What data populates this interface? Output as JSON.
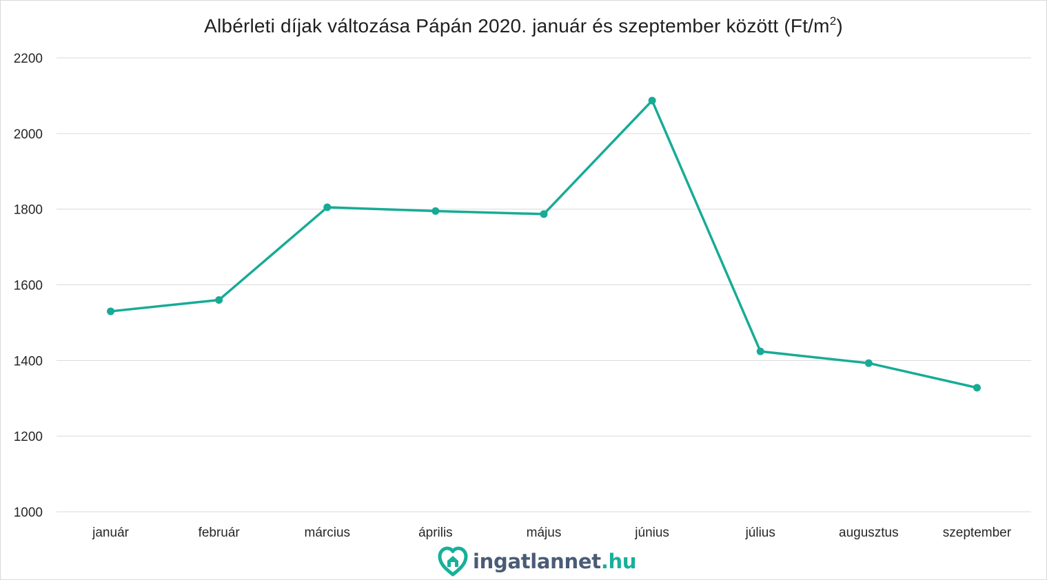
{
  "title": {
    "text": "Albérleti díjak változása Pápán 2020. január és szeptember között (Ft/m",
    "superscript": "2",
    "closing": ")"
  },
  "logo": {
    "main": "ingatlannet",
    "tld": ".hu",
    "icon": "heart-house-icon",
    "colors": {
      "main": "#4a5c75",
      "accent": "#17b09a"
    }
  },
  "chart_data": {
    "type": "line",
    "title": "Albérleti díjak változása Pápán 2020. január és szeptember között (Ft/m2)",
    "categories": [
      "január",
      "február",
      "március",
      "április",
      "május",
      "június",
      "július",
      "augusztus",
      "szeptember"
    ],
    "series": [
      {
        "values": [
          1530,
          1560,
          1805,
          1795,
          1787,
          2087,
          1424,
          1393,
          1328
        ],
        "color": "#17ab96"
      }
    ],
    "ylim": [
      1000,
      2200
    ],
    "yticks": [
      1000,
      1200,
      1400,
      1600,
      1800,
      2000,
      2200
    ],
    "grid": true,
    "legend": "none"
  }
}
